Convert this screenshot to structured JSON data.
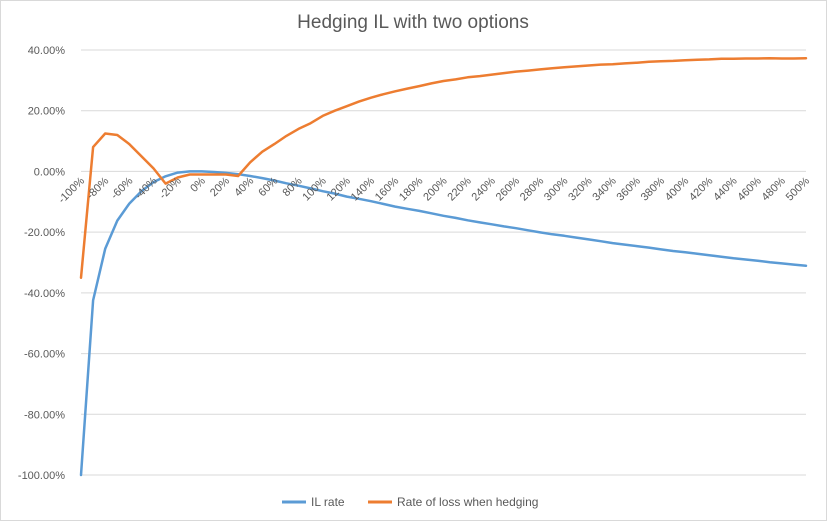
{
  "chart_data": {
    "type": "line",
    "title": "Hedging IL with two options",
    "xlabel": "",
    "ylabel": "",
    "ylim": [
      -100,
      40
    ],
    "yticks": [
      40,
      20,
      0,
      -20,
      -40,
      -60,
      -80,
      -100
    ],
    "ytick_labels": [
      "40.00%",
      "20.00%",
      "0.00%",
      "-20.00%",
      "-40.00%",
      "-60.00%",
      "-80.00%",
      "-100.00%"
    ],
    "grid": "horizontal",
    "legend_position": "bottom",
    "x": [
      -100,
      -90,
      -80,
      -70,
      -60,
      -50,
      -40,
      -30,
      -20,
      -10,
      0,
      10,
      20,
      30,
      40,
      50,
      60,
      70,
      80,
      90,
      100,
      110,
      120,
      130,
      140,
      150,
      160,
      170,
      180,
      190,
      200,
      210,
      220,
      230,
      240,
      250,
      260,
      270,
      280,
      290,
      300,
      310,
      320,
      330,
      340,
      350,
      360,
      370,
      380,
      390,
      400,
      410,
      420,
      430,
      440,
      450,
      460,
      470,
      480,
      490,
      500
    ],
    "x_tick_labels": [
      "-100%",
      "-80%",
      "-60%",
      "-40%",
      "-20%",
      "0%",
      "20%",
      "40%",
      "60%",
      "80%",
      "100%",
      "120%",
      "140%",
      "160%",
      "180%",
      "200%",
      "220%",
      "240%",
      "260%",
      "280%",
      "300%",
      "320%",
      "340%",
      "360%",
      "380%",
      "400%",
      "420%",
      "440%",
      "460%",
      "480%",
      "500%"
    ],
    "series": [
      {
        "name": "IL rate",
        "color": "#5b9bd5",
        "values": [
          -100,
          -42.5,
          -25.5,
          -16.2,
          -10.6,
          -6.5,
          -3.5,
          -1.6,
          -0.4,
          0,
          0,
          -0.2,
          -0.5,
          -0.9,
          -1.5,
          -2.2,
          -3,
          -3.9,
          -4.7,
          -5.6,
          -6.5,
          -7.3,
          -8.3,
          -9,
          -9.8,
          -10.7,
          -11.6,
          -12.3,
          -13,
          -13.8,
          -14.6,
          -15.3,
          -16.1,
          -16.8,
          -17.4,
          -18.1,
          -18.7,
          -19.4,
          -20.1,
          -20.7,
          -21.2,
          -21.8,
          -22.4,
          -23,
          -23.6,
          -24.1,
          -24.6,
          -25.1,
          -25.7,
          -26.2,
          -26.6,
          -27.1,
          -27.6,
          -28.1,
          -28.6,
          -29,
          -29.4,
          -29.9,
          -30.3,
          -30.7,
          -31.1
        ]
      },
      {
        "name": "Rate of loss when hedging",
        "color": "#ed7d31",
        "values": [
          -35,
          8,
          12.5,
          12,
          9,
          5,
          1,
          -4,
          -2,
          -1,
          -1,
          -1,
          -1,
          -1.5,
          3,
          6.5,
          9,
          11.7,
          14,
          15.9,
          18.3,
          20,
          21.5,
          23,
          24.3,
          25.4,
          26.4,
          27.3,
          28.1,
          29,
          29.8,
          30.3,
          31,
          31.4,
          31.9,
          32.4,
          32.9,
          33.2,
          33.6,
          34,
          34.3,
          34.6,
          34.9,
          35.2,
          35.3,
          35.6,
          35.8,
          36.1,
          36.3,
          36.4,
          36.6,
          36.8,
          36.9,
          37.1,
          37.1,
          37.2,
          37.2,
          37.3,
          37.2,
          37.2,
          37.3
        ]
      }
    ]
  }
}
